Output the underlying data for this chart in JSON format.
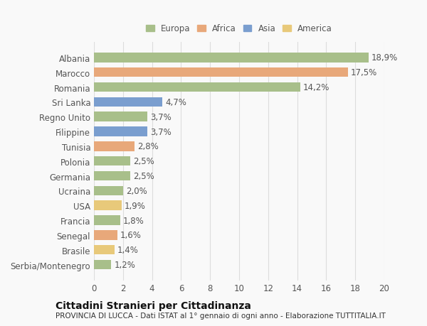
{
  "categories": [
    "Serbia/Montenegro",
    "Brasile",
    "Senegal",
    "Francia",
    "USA",
    "Ucraina",
    "Germania",
    "Polonia",
    "Tunisia",
    "Filippine",
    "Regno Unito",
    "Sri Lanka",
    "Romania",
    "Marocco",
    "Albania"
  ],
  "values": [
    1.2,
    1.4,
    1.6,
    1.8,
    1.9,
    2.0,
    2.5,
    2.5,
    2.8,
    3.7,
    3.7,
    4.7,
    14.2,
    17.5,
    18.9
  ],
  "labels": [
    "1,2%",
    "1,4%",
    "1,6%",
    "1,8%",
    "1,9%",
    "2,0%",
    "2,5%",
    "2,5%",
    "2,8%",
    "3,7%",
    "3,7%",
    "4,7%",
    "14,2%",
    "17,5%",
    "18,9%"
  ],
  "colors": [
    "#a8bf8a",
    "#e8c97a",
    "#e8a87a",
    "#a8bf8a",
    "#e8c97a",
    "#a8bf8a",
    "#a8bf8a",
    "#a8bf8a",
    "#e8a87a",
    "#7a9ecf",
    "#a8bf8a",
    "#7a9ecf",
    "#a8bf8a",
    "#e8a87a",
    "#a8bf8a"
  ],
  "legend_labels": [
    "Europa",
    "Africa",
    "Asia",
    "America"
  ],
  "legend_colors": [
    "#a8bf8a",
    "#e8a87a",
    "#7a9ecf",
    "#e8c97a"
  ],
  "xlim": [
    0,
    20
  ],
  "xticks": [
    0,
    2,
    4,
    6,
    8,
    10,
    12,
    14,
    16,
    18,
    20
  ],
  "title_main": "Cittadini Stranieri per Cittadinanza",
  "title_sub": "PROVINCIA DI LUCCA - Dati ISTAT al 1° gennaio di ogni anno - Elaborazione TUTTITALIA.IT",
  "background_color": "#f9f9f9",
  "bar_height": 0.65,
  "grid_color": "#dddddd",
  "label_fontsize": 8.5,
  "tick_fontsize": 8.5,
  "title_fontsize": 10,
  "subtitle_fontsize": 7.5,
  "text_color": "#555555"
}
